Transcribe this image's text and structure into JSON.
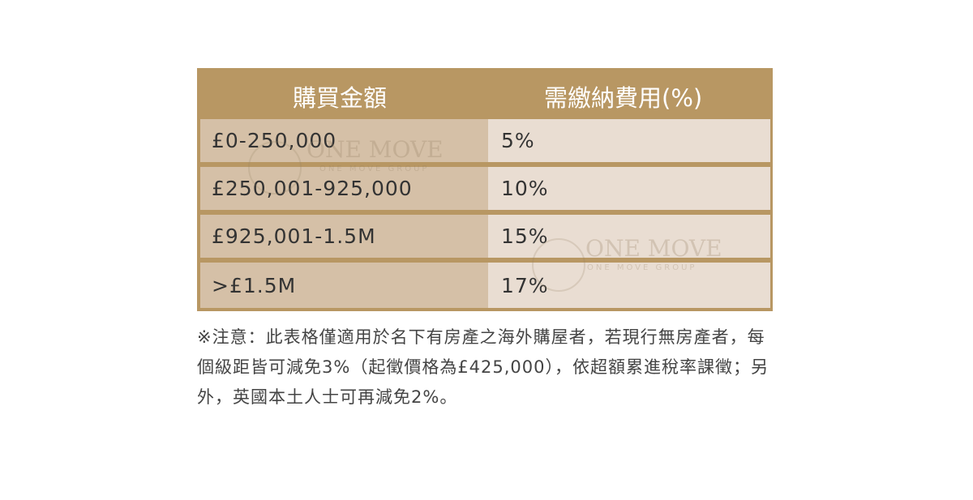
{
  "table": {
    "headers": [
      "購買金額",
      "需繳納費用(%)"
    ],
    "rows": [
      {
        "amount": "£0-250,000",
        "fee": "5%"
      },
      {
        "amount": "£250,001-925,000",
        "fee": "10%"
      },
      {
        "amount": "£925,001-1.5M",
        "fee": "15%"
      },
      {
        "amount": ">£1.5M",
        "fee": "17%"
      }
    ]
  },
  "note": "※注意：此表格僅適用於名下有房產之海外購屋者，若現行無房產者，每個級距皆可減免3%（起徵價格為£425,000），依超額累進稅率課徵；另外，英國本土人士可再減免2%。",
  "watermark": {
    "title": "ONE MOVE",
    "subtitle": "ONE MOVE GROUP"
  },
  "colors": {
    "header": "#b89763",
    "amount_cell": "#d5c0a7",
    "fee_cell": "#e9ddd2",
    "text": "#333333"
  }
}
